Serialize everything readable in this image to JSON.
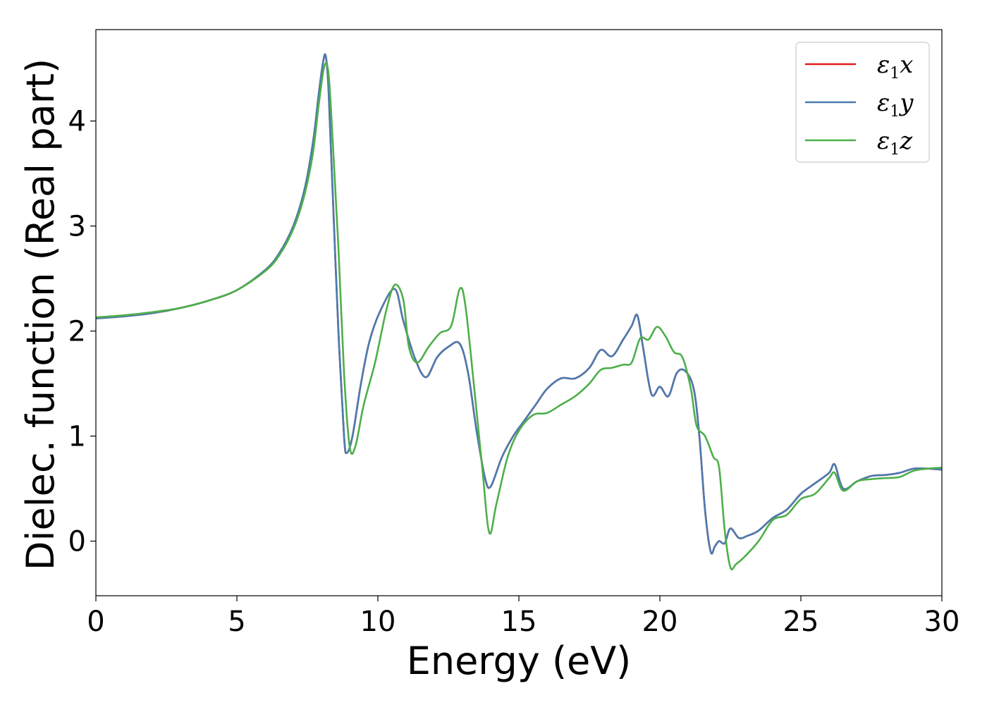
{
  "chart_data": {
    "type": "line",
    "title": "",
    "xlabel": "Energy (eV)",
    "ylabel": "Dielec. function (Real part)",
    "xlim": [
      0,
      30
    ],
    "ylim": [
      -0.52,
      4.87
    ],
    "xticks": [
      0,
      5,
      10,
      15,
      20,
      25,
      30
    ],
    "yticks": [
      0,
      1,
      2,
      3,
      4
    ],
    "grid": false,
    "legend_position": "top-right",
    "series": [
      {
        "name": "ε₁x",
        "legend_base": "ε",
        "legend_sub": "1",
        "legend_suffix": "x",
        "color": "#e41a1c",
        "x": [
          0,
          1,
          2,
          3,
          4,
          5,
          6,
          6.5,
          7,
          7.4,
          7.7,
          7.9,
          8.05,
          8.15,
          8.25,
          8.4,
          8.6,
          8.8,
          8.9,
          9.1,
          9.4,
          9.7,
          10.1,
          10.6,
          10.9,
          11.3,
          11.7,
          12.1,
          12.5,
          12.9,
          13.2,
          13.5,
          13.8,
          14.0,
          14.4,
          14.8,
          15.2,
          15.6,
          16.0,
          16.5,
          17.0,
          17.5,
          17.9,
          18.3,
          18.7,
          19.0,
          19.2,
          19.4,
          19.7,
          20.0,
          20.3,
          20.6,
          20.9,
          21.2,
          21.4,
          21.6,
          21.8,
          21.95,
          22.1,
          22.3,
          22.5,
          22.8,
          23.1,
          23.5,
          24.0,
          24.5,
          25.0,
          25.5,
          26.0,
          26.2,
          26.5,
          27.0,
          27.5,
          28.0,
          28.5,
          29.0,
          29.5,
          30.0
        ],
        "y": [
          2.12,
          2.14,
          2.17,
          2.22,
          2.29,
          2.39,
          2.58,
          2.74,
          3.0,
          3.35,
          3.8,
          4.25,
          4.55,
          4.62,
          4.3,
          3.3,
          2.0,
          1.0,
          0.84,
          1.0,
          1.5,
          1.9,
          2.2,
          2.4,
          2.1,
          1.75,
          1.56,
          1.75,
          1.85,
          1.88,
          1.6,
          1.05,
          0.6,
          0.52,
          0.8,
          1.0,
          1.15,
          1.3,
          1.45,
          1.55,
          1.55,
          1.65,
          1.82,
          1.76,
          1.92,
          2.05,
          2.15,
          1.85,
          1.4,
          1.47,
          1.38,
          1.6,
          1.62,
          1.45,
          1.0,
          0.3,
          -0.1,
          -0.05,
          0.0,
          -0.02,
          0.12,
          0.03,
          0.05,
          0.1,
          0.22,
          0.3,
          0.45,
          0.55,
          0.65,
          0.73,
          0.5,
          0.57,
          0.62,
          0.63,
          0.65,
          0.69,
          0.69,
          0.68
        ]
      },
      {
        "name": "ε₁y",
        "legend_base": "ε",
        "legend_sub": "1",
        "legend_suffix": "y",
        "color": "#4a7bb0",
        "x": [
          0,
          1,
          2,
          3,
          4,
          5,
          6,
          6.5,
          7,
          7.4,
          7.7,
          7.9,
          8.05,
          8.15,
          8.25,
          8.4,
          8.6,
          8.8,
          8.9,
          9.1,
          9.4,
          9.7,
          10.1,
          10.6,
          10.9,
          11.3,
          11.7,
          12.1,
          12.5,
          12.9,
          13.2,
          13.5,
          13.8,
          14.0,
          14.4,
          14.8,
          15.2,
          15.6,
          16.0,
          16.5,
          17.0,
          17.5,
          17.9,
          18.3,
          18.7,
          19.0,
          19.2,
          19.4,
          19.7,
          20.0,
          20.3,
          20.6,
          20.9,
          21.2,
          21.4,
          21.6,
          21.8,
          21.95,
          22.1,
          22.3,
          22.5,
          22.8,
          23.1,
          23.5,
          24.0,
          24.5,
          25.0,
          25.5,
          26.0,
          26.2,
          26.5,
          27.0,
          27.5,
          28.0,
          28.5,
          29.0,
          29.5,
          30.0
        ],
        "y": [
          2.12,
          2.14,
          2.17,
          2.22,
          2.29,
          2.39,
          2.58,
          2.74,
          3.0,
          3.35,
          3.8,
          4.25,
          4.55,
          4.62,
          4.3,
          3.3,
          2.0,
          1.0,
          0.84,
          1.0,
          1.5,
          1.9,
          2.2,
          2.4,
          2.1,
          1.75,
          1.56,
          1.75,
          1.85,
          1.88,
          1.6,
          1.05,
          0.6,
          0.52,
          0.8,
          1.0,
          1.15,
          1.3,
          1.45,
          1.55,
          1.55,
          1.65,
          1.82,
          1.76,
          1.92,
          2.05,
          2.15,
          1.85,
          1.4,
          1.47,
          1.38,
          1.6,
          1.62,
          1.45,
          1.0,
          0.3,
          -0.1,
          -0.05,
          0.0,
          -0.02,
          0.12,
          0.03,
          0.05,
          0.1,
          0.22,
          0.3,
          0.45,
          0.55,
          0.65,
          0.73,
          0.5,
          0.57,
          0.62,
          0.63,
          0.65,
          0.69,
          0.69,
          0.68
        ]
      },
      {
        "name": "ε₁z",
        "legend_base": "ε",
        "legend_sub": "1",
        "legend_suffix": "z",
        "color": "#4daf4a",
        "x": [
          0,
          1,
          2,
          3,
          4,
          5,
          6,
          6.5,
          7,
          7.4,
          7.7,
          7.9,
          8.1,
          8.25,
          8.4,
          8.6,
          8.8,
          9.0,
          9.2,
          9.5,
          9.9,
          10.3,
          10.6,
          10.9,
          11.1,
          11.4,
          11.8,
          12.2,
          12.6,
          12.9,
          13.1,
          13.4,
          13.7,
          13.95,
          14.2,
          14.6,
          15.0,
          15.5,
          16.0,
          16.5,
          17.0,
          17.5,
          17.9,
          18.3,
          18.7,
          19.0,
          19.3,
          19.6,
          19.9,
          20.2,
          20.5,
          20.8,
          21.1,
          21.3,
          21.6,
          21.9,
          22.1,
          22.3,
          22.5,
          22.7,
          23.0,
          23.5,
          24.0,
          24.5,
          25.0,
          25.5,
          26.0,
          26.2,
          26.5,
          27.0,
          27.5,
          28.0,
          28.5,
          29.0,
          29.5,
          30.0
        ],
        "y": [
          2.13,
          2.15,
          2.18,
          2.22,
          2.29,
          2.39,
          2.57,
          2.72,
          2.97,
          3.3,
          3.7,
          4.15,
          4.52,
          4.45,
          3.8,
          2.8,
          1.6,
          0.9,
          0.9,
          1.3,
          1.7,
          2.2,
          2.44,
          2.3,
          1.85,
          1.7,
          1.85,
          1.98,
          2.05,
          2.4,
          2.25,
          1.5,
          0.7,
          0.08,
          0.35,
          0.8,
          1.05,
          1.2,
          1.22,
          1.3,
          1.38,
          1.5,
          1.63,
          1.65,
          1.68,
          1.7,
          1.93,
          1.92,
          2.04,
          1.95,
          1.8,
          1.75,
          1.45,
          1.1,
          1.0,
          0.8,
          0.7,
          0.1,
          -0.25,
          -0.22,
          -0.15,
          0.0,
          0.2,
          0.25,
          0.4,
          0.45,
          0.6,
          0.65,
          0.48,
          0.57,
          0.59,
          0.6,
          0.61,
          0.67,
          0.69,
          0.7
        ]
      }
    ]
  }
}
